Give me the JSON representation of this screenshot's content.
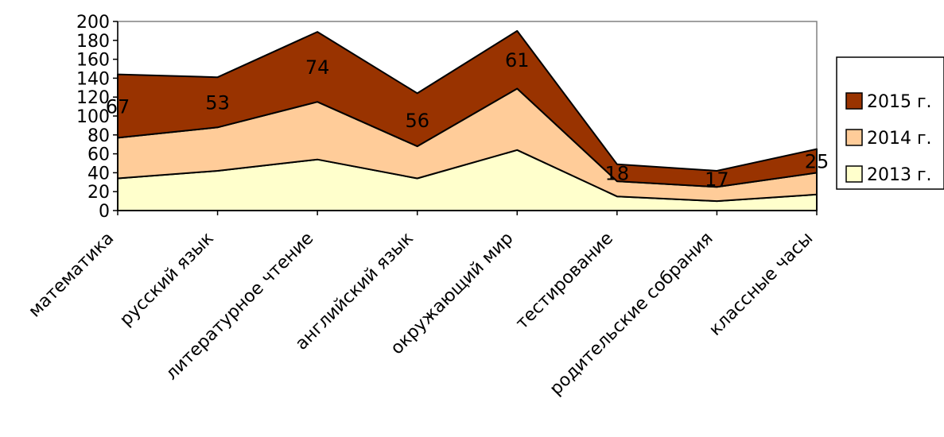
{
  "chart_data": {
    "type": "area",
    "stacked": true,
    "categories": [
      "математика",
      "русский язык",
      "литературное чтение",
      "английский язык",
      "окружающий мир",
      "тестирование",
      "родительские собрания",
      "классные часы"
    ],
    "series": [
      {
        "name": "2013 г.",
        "color": "#FFFFCC",
        "values": [
          34,
          42,
          54,
          34,
          64,
          15,
          10,
          17
        ]
      },
      {
        "name": "2014 г.",
        "color": "#FFCC99",
        "values": [
          43,
          46,
          61,
          34,
          65,
          16,
          15,
          23
        ]
      },
      {
        "name": "2015 г.",
        "color": "#993300",
        "values": [
          67,
          53,
          74,
          56,
          61,
          18,
          17,
          25
        ]
      }
    ],
    "data_labels_series": "2015 г.",
    "ylim": [
      0,
      200
    ],
    "yticks": [
      0,
      20,
      40,
      60,
      80,
      100,
      120,
      140,
      160,
      180,
      200
    ],
    "grid": false,
    "legend_position": "right",
    "plot_border_color": "#808080"
  }
}
